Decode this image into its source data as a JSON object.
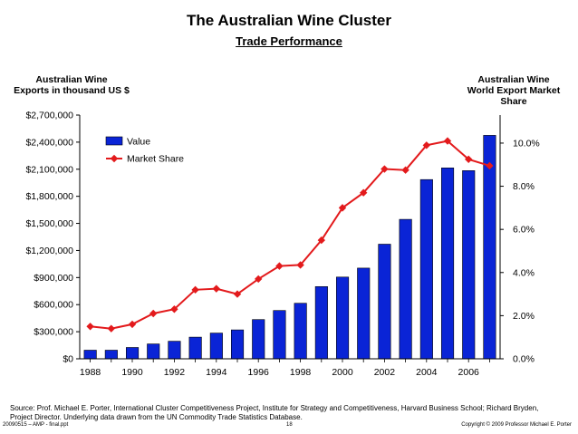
{
  "slide": {
    "title": "The Australian Wine Cluster",
    "subtitle": "Trade Performance",
    "left_axis_title": "Australian Wine\nExports in thousand US $",
    "right_axis_title": "Australian Wine\nWorld Export Market\nShare",
    "source": "Source: Prof. Michael E. Porter, International Cluster Competitiveness Project, Institute for Strategy and Competitiveness, Harvard Business School; Richard Bryden, Project Director. Underlying data drawn from the UN Commodity Trade Statistics Database.",
    "footer_file": "20090515 – AMP - final.ppt",
    "footer_page": "18",
    "footer_copyright": "Copyright © 2009 Professor Michael E. Porter"
  },
  "chart_data": {
    "type": "bar+line",
    "x": [
      1988,
      1989,
      1990,
      1991,
      1992,
      1993,
      1994,
      1995,
      1996,
      1997,
      1998,
      1999,
      2000,
      2001,
      2002,
      2003,
      2004,
      2005,
      2006,
      2007
    ],
    "x_ticks": [
      "1988",
      "1990",
      "1992",
      "1994",
      "1996",
      "1998",
      "2000",
      "2002",
      "2004",
      "2006"
    ],
    "series": [
      {
        "name": "Value",
        "type": "bar",
        "axis": "left",
        "color": "#0a24d6",
        "values": [
          95000,
          95000,
          125000,
          165000,
          195000,
          240000,
          285000,
          320000,
          435000,
          535000,
          615000,
          800000,
          905000,
          1005000,
          1270000,
          1545000,
          1985000,
          2115000,
          2085000,
          2475000
        ]
      },
      {
        "name": "Market Share",
        "type": "line",
        "axis": "right",
        "color": "#e31a1c",
        "values": [
          1.5,
          1.4,
          1.6,
          2.1,
          2.3,
          3.2,
          3.25,
          3.0,
          3.7,
          4.3,
          4.35,
          5.5,
          7.0,
          7.7,
          8.8,
          8.75,
          9.9,
          10.1,
          9.25,
          8.95
        ]
      }
    ],
    "y_left": {
      "ylim": [
        0,
        2700000
      ],
      "ticks": [
        0,
        300000,
        600000,
        900000,
        1200000,
        1500000,
        1800000,
        2100000,
        2400000,
        2700000
      ],
      "tick_labels": [
        "$0",
        "$300,000",
        "$600,000",
        "$900,000",
        "$1,200,000",
        "$1,500,000",
        "$1,800,000",
        "$2,100,000",
        "$2,400,000",
        "$2,700,000"
      ]
    },
    "y_right": {
      "ylim": [
        0,
        11.3
      ],
      "ticks": [
        0,
        2,
        4,
        6,
        8,
        10
      ],
      "tick_labels": [
        "0.0%",
        "2.0%",
        "4.0%",
        "6.0%",
        "8.0%",
        "10.0%"
      ]
    },
    "legend": {
      "placement": "top-left",
      "entries": [
        "Value",
        "Market Share"
      ]
    },
    "grid": false
  }
}
